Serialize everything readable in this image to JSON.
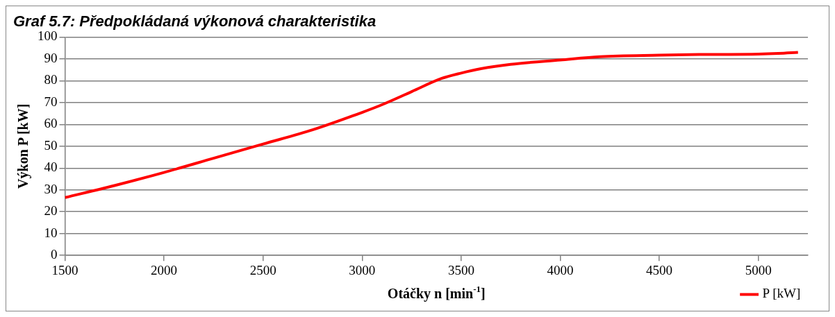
{
  "chart_data": {
    "type": "line",
    "title": "Graf 5.7: Předpokládaná výkonová charakteristika",
    "xlabel": "Otáčky n [min$^{-1}$]",
    "ylabel": "Výkon P [kW]",
    "series": [
      {
        "name": "P [kW]",
        "color": "#ff0000",
        "x": [
          1500,
          1750,
          2000,
          2250,
          2500,
          2750,
          3000,
          3100,
          3250,
          3400,
          3500,
          3600,
          3750,
          4000,
          4200,
          4500,
          4700,
          5000,
          5100,
          5200
        ],
        "values": [
          26.5,
          32,
          38,
          44.5,
          51,
          57.5,
          65.5,
          69,
          75,
          81,
          83.5,
          85.5,
          87.5,
          89.5,
          91,
          91.7,
          92,
          92.2,
          92.5,
          93
        ]
      }
    ],
    "xlim": [
      1500,
      5250
    ],
    "xticks": [
      1500,
      2000,
      2500,
      3000,
      3500,
      4000,
      4500,
      5000
    ],
    "ylim": [
      0,
      100
    ],
    "yticks": [
      0,
      10,
      20,
      30,
      40,
      50,
      60,
      70,
      80,
      90,
      100
    ],
    "grid": "y",
    "legend": "bottom right",
    "marker": "none",
    "line_style": "solid"
  }
}
